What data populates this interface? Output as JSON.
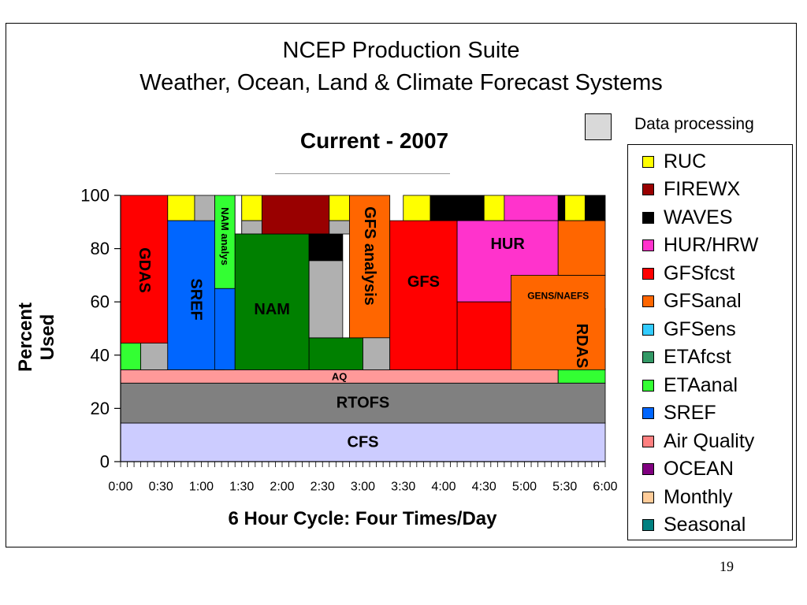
{
  "slide": {
    "title_line1": "NCEP Production Suite",
    "title_line2": "Weather, Ocean, Land & Climate Forecast Systems",
    "page_number": "19"
  },
  "extra_legend": {
    "label": "Data processing",
    "color": "#d9d9d9"
  },
  "chart_data": {
    "type": "area",
    "title": "Current - 2007",
    "xlabel": "6 Hour Cycle: Four Times/Day",
    "ylabel": "Percent Used",
    "xlim": [
      0,
      360
    ],
    "ylim": [
      0,
      100
    ],
    "yticks": [
      0,
      20,
      40,
      60,
      80,
      100
    ],
    "xticks": [
      {
        "t": 0,
        "label": "0:00"
      },
      {
        "t": 30,
        "label": "0:30"
      },
      {
        "t": 60,
        "label": "1:00"
      },
      {
        "t": 90,
        "label": "1:30"
      },
      {
        "t": 120,
        "label": "2:00"
      },
      {
        "t": 150,
        "label": "2:30"
      },
      {
        "t": 180,
        "label": "3:00"
      },
      {
        "t": 210,
        "label": "3:30"
      },
      {
        "t": 240,
        "label": "4:00"
      },
      {
        "t": 270,
        "label": "4:30"
      },
      {
        "t": 300,
        "label": "5:00"
      },
      {
        "t": 330,
        "label": "5:30"
      },
      {
        "t": 360,
        "label": "6:00"
      }
    ],
    "legend_placement": "right",
    "legend": [
      {
        "name": "RUC",
        "color": "#ffff00"
      },
      {
        "name": "FIREWX",
        "color": "#990000"
      },
      {
        "name": "WAVES",
        "color": "#000000"
      },
      {
        "name": "HUR/HRW",
        "color": "#ff33cc"
      },
      {
        "name": "GFSfcst",
        "color": "#ff0000"
      },
      {
        "name": "GFSanal",
        "color": "#ff6600"
      },
      {
        "name": "GFSens",
        "color": "#33ccff"
      },
      {
        "name": "ETAfcst",
        "color": "#339966"
      },
      {
        "name": "ETAanal",
        "color": "#33ff33"
      },
      {
        "name": "SREF",
        "color": "#0066ff"
      },
      {
        "name": "Air Quality",
        "color": "#ff8080"
      },
      {
        "name": "OCEAN",
        "color": "#800080"
      },
      {
        "name": "Monthly",
        "color": "#ffcc99"
      },
      {
        "name": "Seasonal",
        "color": "#008080"
      }
    ],
    "blocks": [
      {
        "label": "CFS",
        "t0": 0,
        "t1": 360,
        "y0": 0,
        "y1": 14.5,
        "color": "#ccccff",
        "text": "horizontal"
      },
      {
        "label": "RTOFS",
        "t0": 0,
        "t1": 360,
        "y0": 14.5,
        "y1": 29.5,
        "color": "#808080",
        "text": "horizontal"
      },
      {
        "label": "AQ",
        "t0": 0,
        "t1": 325,
        "y0": 29.5,
        "y1": 34.5,
        "color": "#ff9999",
        "text": "horizontal-small"
      },
      {
        "label": "RDAS",
        "t0": 325,
        "t1": 360,
        "y0": 29.5,
        "y1": 57.5,
        "color": "#33ff33",
        "text": "vertical"
      },
      {
        "label": "",
        "t0": 0,
        "t1": 15,
        "y0": 34.5,
        "y1": 44.5,
        "color": "#33ff33"
      },
      {
        "label": "",
        "t0": 15,
        "t1": 35,
        "y0": 34.5,
        "y1": 44.5,
        "color": "#b0b0b0"
      },
      {
        "label": "GDAS",
        "t0": 0,
        "t1": 35,
        "y0": 44.5,
        "y1": 100,
        "color": "#ff0000",
        "text": "vertical"
      },
      {
        "label": "",
        "t0": 35,
        "t1": 55,
        "y0": 90.5,
        "y1": 100,
        "color": "#ffff00"
      },
      {
        "label": "SREF",
        "t0": 35,
        "t1": 77,
        "y0": 34.5,
        "y1": 90.5,
        "color": "#0066ff",
        "text": "vertical"
      },
      {
        "label": "",
        "t0": 55,
        "t1": 70,
        "y0": 90.5,
        "y1": 100,
        "color": "#b0b0b0"
      },
      {
        "label": "NAM analys",
        "t0": 70,
        "t1": 85,
        "y0": 65,
        "y1": 100,
        "color": "#33ff33",
        "text": "vertical-small"
      },
      {
        "label": "",
        "t0": 70,
        "t1": 85,
        "y0": 34.5,
        "y1": 65,
        "color": "#0066ff"
      },
      {
        "label": "",
        "t0": 85,
        "t1": 90,
        "y0": 85.5,
        "y1": 100,
        "color": "#ffffff"
      },
      {
        "label": "",
        "t0": 90,
        "t1": 105,
        "y0": 90.5,
        "y1": 100,
        "color": "#ffff00"
      },
      {
        "label": "",
        "t0": 90,
        "t1": 105,
        "y0": 85.5,
        "y1": 90.5,
        "color": "#b0b0b0"
      },
      {
        "label": "NAM",
        "t0": 85,
        "t1": 140,
        "y0": 34.5,
        "y1": 85.5,
        "color": "#008000",
        "text": "horizontal"
      },
      {
        "label": "",
        "t0": 105,
        "t1": 155,
        "y0": 85.5,
        "y1": 100,
        "color": "#990000"
      },
      {
        "label": "",
        "t0": 140,
        "t1": 155,
        "y0": 46.5,
        "y1": 85.5,
        "color": "#ffffff"
      },
      {
        "label": "",
        "t0": 140,
        "t1": 180,
        "y0": 34.5,
        "y1": 46.5,
        "color": "#008000"
      },
      {
        "label": "",
        "t0": 140,
        "t1": 165,
        "y0": 46.5,
        "y1": 75.5,
        "color": "#b0b0b0"
      },
      {
        "label": "",
        "t0": 140,
        "t1": 165,
        "y0": 75.5,
        "y1": 85.5,
        "color": "#000000"
      },
      {
        "label": "",
        "t0": 155,
        "t1": 170,
        "y0": 90.5,
        "y1": 100,
        "color": "#ffff00"
      },
      {
        "label": "",
        "t0": 155,
        "t1": 170,
        "y0": 85.5,
        "y1": 90.5,
        "color": "#b0b0b0"
      },
      {
        "label": "GFS analysis",
        "t0": 170,
        "t1": 200,
        "y0": 46.5,
        "y1": 100,
        "color": "#ff6600",
        "text": "vertical"
      },
      {
        "label": "",
        "t0": 180,
        "t1": 200,
        "y0": 34.5,
        "y1": 46.5,
        "color": "#b0b0b0"
      },
      {
        "label": "GFS",
        "t0": 200,
        "t1": 250,
        "y0": 34.5,
        "y1": 90.5,
        "color": "#ff0000",
        "text": "horizontal"
      },
      {
        "label": "",
        "t0": 210,
        "t1": 230,
        "y0": 90.5,
        "y1": 100,
        "color": "#ffff00"
      },
      {
        "label": "",
        "t0": 230,
        "t1": 270,
        "y0": 90.5,
        "y1": 100,
        "color": "#000000"
      },
      {
        "label": "",
        "t0": 270,
        "t1": 285,
        "y0": 90.5,
        "y1": 100,
        "color": "#ffff00"
      },
      {
        "label": "",
        "t0": 285,
        "t1": 325,
        "y0": 90.5,
        "y1": 100,
        "color": "#ff33cc"
      },
      {
        "label": "",
        "t0": 325,
        "t1": 330,
        "y0": 90.5,
        "y1": 100,
        "color": "#000000"
      },
      {
        "label": "",
        "t0": 330,
        "t1": 345,
        "y0": 90.5,
        "y1": 100,
        "color": "#ffff00"
      },
      {
        "label": "",
        "t0": 345,
        "t1": 360,
        "y0": 90.5,
        "y1": 100,
        "color": "#000000"
      },
      {
        "label": "HUR",
        "t0": 250,
        "t1": 325,
        "y0": 60,
        "y1": 90.5,
        "color": "#ff33cc",
        "text": "horizontal"
      },
      {
        "label": "",
        "t0": 250,
        "t1": 290,
        "y0": 34.5,
        "y1": 60,
        "color": "#ff0000"
      },
      {
        "label": "GENS/NAEFS",
        "t0": 290,
        "t1": 360,
        "y0": 34.5,
        "y1": 70,
        "color": "#ff6600",
        "text": "horizontal-tiny"
      },
      {
        "label": "",
        "t0": 325,
        "t1": 360,
        "y0": 70,
        "y1": 90.5,
        "color": "#ff6600"
      }
    ]
  }
}
